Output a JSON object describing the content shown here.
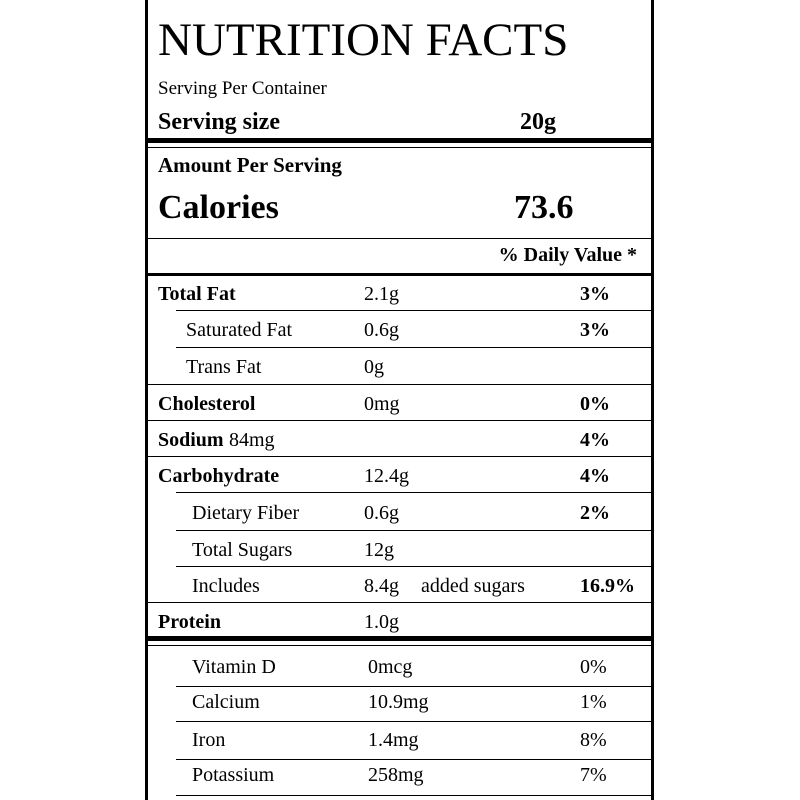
{
  "header": {
    "title": "NUTRITION FACTS",
    "serving_per_container": "Serving Per Container",
    "serving_size_label": "Serving size",
    "serving_size": "20g"
  },
  "calories": {
    "amount_label": "Amount Per Serving",
    "label": "Calories",
    "value": "73.6"
  },
  "daily_value_header": "% Daily Value *",
  "nutrients": [
    {
      "name": "Total Fat",
      "amount": "2.1g",
      "dv": "3%"
    },
    {
      "name": "Saturated Fat",
      "amount": "0.6g",
      "dv": "3%"
    },
    {
      "name": "Trans Fat",
      "amount": "0g"
    },
    {
      "name": "Cholesterol",
      "amount": "0mg",
      "dv": "0%"
    },
    {
      "name": "Sodium",
      "amount": "84mg",
      "dv": "4%"
    },
    {
      "name": "Carbohydrate",
      "amount": "12.4g",
      "dv": "4%"
    },
    {
      "name": "Dietary Fiber",
      "amount": "0.6g",
      "dv": "2%"
    },
    {
      "name": "Total Sugars",
      "amount": "12g"
    },
    {
      "name": "Includes",
      "amount": "8.4g",
      "extra": "added sugars",
      "dv": "16.9%"
    },
    {
      "name": "Protein",
      "amount": "1.0g"
    }
  ],
  "vitamins": [
    {
      "name": "Vitamin D",
      "amount": "0mcg",
      "dv": "0%"
    },
    {
      "name": "Calcium",
      "amount": "10.9mg",
      "dv": "1%"
    },
    {
      "name": "Iron",
      "amount": "1.4mg",
      "dv": "8%"
    },
    {
      "name": "Potassium",
      "amount": "258mg",
      "dv": "7%"
    }
  ]
}
